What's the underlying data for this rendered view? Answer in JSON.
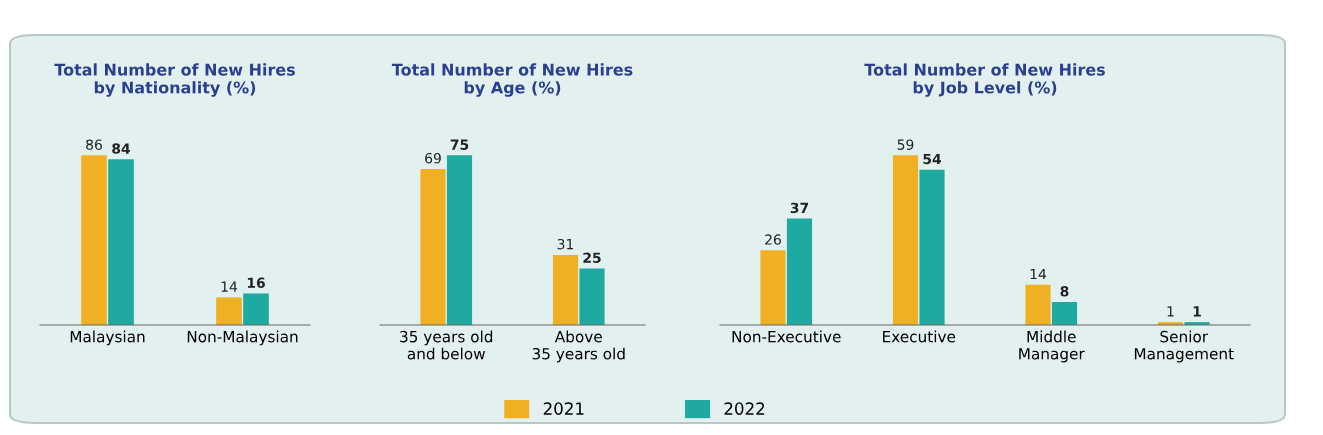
{
  "chart_data": [
    {
      "type": "bar",
      "title": "Total Number of New Hires\nby Nationality (%)",
      "categories": [
        "Malaysian",
        "Non-Malaysian"
      ],
      "data_labels": true,
      "legend": "bottom",
      "series": [
        {
          "name": "2021",
          "color": "#f0b023",
          "values": [
            86,
            14
          ]
        },
        {
          "name": "2022",
          "color": "#1eaaa0",
          "values": [
            84,
            16
          ]
        }
      ]
    },
    {
      "type": "bar",
      "title": "Total Number of New Hires\nby Age (%)",
      "categories": [
        "35 years old\nand below",
        "Above\n35 years old"
      ],
      "data_labels": true,
      "legend": "bottom",
      "series": [
        {
          "name": "2021",
          "color": "#f0b023",
          "values": [
            69,
            31
          ]
        },
        {
          "name": "2022",
          "color": "#1eaaa0",
          "values": [
            75,
            25
          ]
        }
      ]
    },
    {
      "type": "bar",
      "title": "Total Number of New Hires\nby Job Level (%)",
      "categories": [
        "Non-Executive",
        "Executive",
        "Middle\nManager",
        "Senior\nManagement"
      ],
      "data_labels": true,
      "legend": "bottom",
      "series": [
        {
          "name": "2021",
          "color": "#f0b023",
          "values": [
            26,
            59,
            14,
            1
          ]
        },
        {
          "name": "2022",
          "color": "#1eaaa0",
          "values": [
            37,
            54,
            8,
            1
          ]
        }
      ]
    }
  ]
}
